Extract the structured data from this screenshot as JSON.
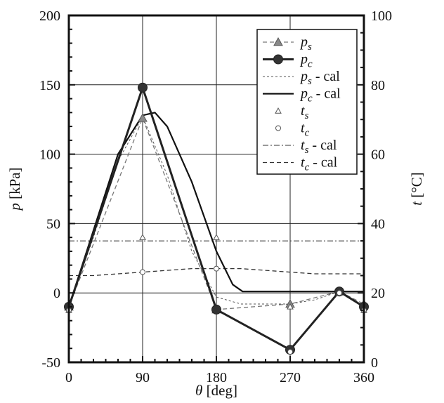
{
  "chart_data": {
    "type": "line",
    "title": "",
    "xlabel": {
      "symbol": "θ",
      "unit": "[deg]"
    },
    "ylabel_left": {
      "symbol": "p",
      "unit": "[kPa]"
    },
    "ylabel_right": {
      "symbol": "t",
      "unit": "[°C]"
    },
    "xlim": [
      0,
      360
    ],
    "ylim_left": [
      -50,
      200
    ],
    "ylim_right": [
      0,
      100
    ],
    "x_ticks": [
      0,
      90,
      180,
      270,
      360
    ],
    "y_ticks_left": [
      -50,
      0,
      50,
      100,
      150,
      200
    ],
    "y_ticks_right": [
      0,
      20,
      40,
      60,
      80,
      100
    ],
    "grid": true,
    "legend_position": "top-right",
    "series": [
      {
        "name": "p_s",
        "label_base": "p",
        "label_sub": "s",
        "label_suffix": "",
        "axis": "left",
        "style": "dash-triangle",
        "x": [
          0,
          90,
          180,
          270,
          330,
          360
        ],
        "y": [
          -10,
          126,
          -12,
          -8,
          1,
          -8
        ]
      },
      {
        "name": "p_c",
        "label_base": "p",
        "label_sub": "c",
        "label_suffix": "",
        "axis": "left",
        "style": "thick-circle",
        "x": [
          0,
          90,
          180,
          270,
          330,
          360
        ],
        "y": [
          -10,
          148,
          -12,
          -41,
          1,
          -10
        ]
      },
      {
        "name": "p_s - cal",
        "label_base": "p",
        "label_sub": "s",
        "label_suffix": " - cal",
        "axis": "left",
        "style": "thin-dash",
        "x": [
          0,
          30,
          60,
          90,
          120,
          150,
          180,
          210,
          240,
          270,
          300,
          330,
          360
        ],
        "y": [
          -10,
          40,
          95,
          127,
          85,
          30,
          -3,
          -8,
          -8,
          -8,
          -5,
          1,
          1
        ]
      },
      {
        "name": "p_c - cal",
        "label_base": "p",
        "label_sub": "c",
        "label_suffix": " - cal",
        "axis": "left",
        "style": "solid",
        "x": [
          0,
          30,
          60,
          90,
          105,
          120,
          150,
          180,
          200,
          212,
          240,
          270,
          300,
          330,
          360
        ],
        "y": [
          -10,
          45,
          100,
          128,
          130,
          120,
          80,
          30,
          6,
          1,
          1,
          1,
          1,
          1,
          1
        ]
      },
      {
        "name": "t_s",
        "label_base": "t",
        "label_sub": "s",
        "label_suffix": "",
        "axis": "right",
        "style": "triangle-markers",
        "x": [
          0,
          90,
          180,
          270,
          330,
          360
        ],
        "y": [
          15,
          36,
          36,
          16,
          20,
          15
        ]
      },
      {
        "name": "t_c",
        "label_base": "t",
        "label_sub": "c",
        "label_suffix": "",
        "axis": "right",
        "style": "circle-markers",
        "x": [
          0,
          90,
          180,
          270,
          330,
          360
        ],
        "y": [
          15,
          26,
          27,
          3,
          20,
          15
        ]
      },
      {
        "name": "t_s - cal",
        "label_base": "t",
        "label_sub": "s",
        "label_suffix": " - cal",
        "axis": "right",
        "style": "thin-dashdot",
        "x": [
          0,
          60,
          120,
          180,
          240,
          300,
          360
        ],
        "y": [
          35,
          35,
          35,
          35,
          35,
          35,
          35
        ]
      },
      {
        "name": "t_c - cal",
        "label_base": "t",
        "label_sub": "c",
        "label_suffix": " - cal",
        "axis": "right",
        "style": "dashed",
        "x": [
          0,
          30,
          60,
          90,
          120,
          150,
          180,
          210,
          240,
          270,
          300,
          330,
          360
        ],
        "y": [
          25,
          25,
          25.5,
          26,
          26.5,
          27,
          27,
          27,
          26.5,
          26,
          25.5,
          25.5,
          25.5
        ]
      }
    ]
  }
}
